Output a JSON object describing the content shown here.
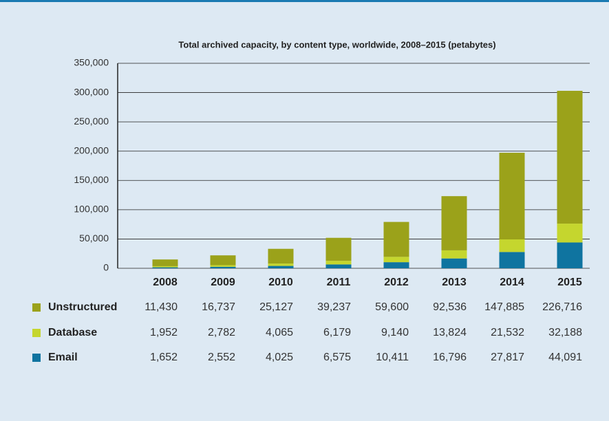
{
  "chart_data": {
    "type": "stacked-bar",
    "title": "Total archived capacity, by content type, worldwide, 2008–2015 (petabytes)",
    "categories": [
      "2008",
      "2009",
      "2010",
      "2011",
      "2012",
      "2013",
      "2014",
      "2015"
    ],
    "series": [
      {
        "name": "Email",
        "color": "#0f74a0",
        "values": [
          1652,
          2552,
          4025,
          6575,
          10411,
          16796,
          27817,
          44091
        ],
        "value_labels": [
          "1,652",
          "2,552",
          "4,025",
          "6,575",
          "10,411",
          "16,796",
          "27,817",
          "44,091"
        ]
      },
      {
        "name": "Database",
        "color": "#c5d62e",
        "values": [
          1952,
          2782,
          4065,
          6179,
          9140,
          13824,
          21532,
          32188
        ],
        "value_labels": [
          "1,952",
          "2,782",
          "4,065",
          "6,179",
          "9,140",
          "13,824",
          "21,532",
          "32,188"
        ]
      },
      {
        "name": "Unstructured",
        "color": "#9ba21a",
        "values": [
          11430,
          16737,
          25127,
          39237,
          59600,
          92536,
          147885,
          226716
        ],
        "value_labels": [
          "11,430",
          "16,737",
          "25,127",
          "39,237",
          "59,600",
          "92,536",
          "147,885",
          "226,716"
        ]
      }
    ],
    "ylim": [
      0,
      350000
    ],
    "yticks": [
      0,
      {
        "value": 50000,
        "label": "50,000"
      },
      {
        "value": 100000,
        "label": "100,000"
      },
      {
        "value": 150000,
        "label": "150,000"
      },
      {
        "value": 200000,
        "label": "200,000"
      },
      {
        "value": 250000,
        "label": "250,000"
      },
      {
        "value": 300000,
        "label": "300,000"
      },
      {
        "value": 350000,
        "label": "350,000"
      }
    ],
    "grid": true
  }
}
